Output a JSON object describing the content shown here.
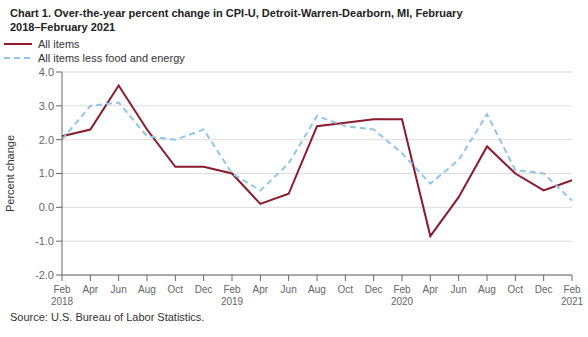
{
  "chart_data": {
    "type": "line",
    "title": "Chart 1. Over-the-year percent change in CPI-U, Detroit-Warren-Dearborn, MI, February\n2018–February 2021",
    "ylabel": "Percent change",
    "annotations": [
      "Source: U.S. Bureau of Labor Statistics."
    ],
    "categories": [
      "Feb\n2018",
      "Apr",
      "Jun",
      "Aug",
      "Oct",
      "Dec",
      "Feb\n2019",
      "Apr",
      "Jun",
      "Aug",
      "Oct",
      "Dec",
      "Feb\n2020",
      "Apr",
      "Jun",
      "Aug",
      "Oct",
      "Dec",
      "Feb\n2021"
    ],
    "series": [
      {
        "name": "All items",
        "color": "#8B1A2E",
        "line_style": "solid",
        "values": [
          2.1,
          2.3,
          3.6,
          2.3,
          1.2,
          1.2,
          1.0,
          0.1,
          0.4,
          2.4,
          2.5,
          2.6,
          2.6,
          -0.85,
          0.3,
          1.8,
          1.0,
          0.5,
          0.8
        ]
      },
      {
        "name": "All items less food and energy",
        "color": "#92C5E8",
        "line_style": "dashed",
        "values": [
          2.0,
          3.0,
          3.1,
          2.1,
          2.0,
          2.3,
          1.0,
          0.5,
          1.3,
          2.7,
          2.4,
          2.3,
          1.6,
          0.7,
          1.4,
          2.75,
          1.1,
          1.0,
          0.2
        ]
      }
    ],
    "ylim": [
      -2.0,
      4.0
    ],
    "yticks": [
      {
        "value": -2.0,
        "label": "-2.0"
      },
      {
        "value": -1.0,
        "label": "-1.0"
      },
      {
        "value": 0.0,
        "label": "0.0"
      },
      {
        "value": 1.0,
        "label": "1.0"
      },
      {
        "value": 2.0,
        "label": "2.0"
      },
      {
        "value": 3.0,
        "label": "3.0"
      },
      {
        "value": 4.0,
        "label": "4.0"
      }
    ],
    "grid": true,
    "legend": "upper right"
  }
}
